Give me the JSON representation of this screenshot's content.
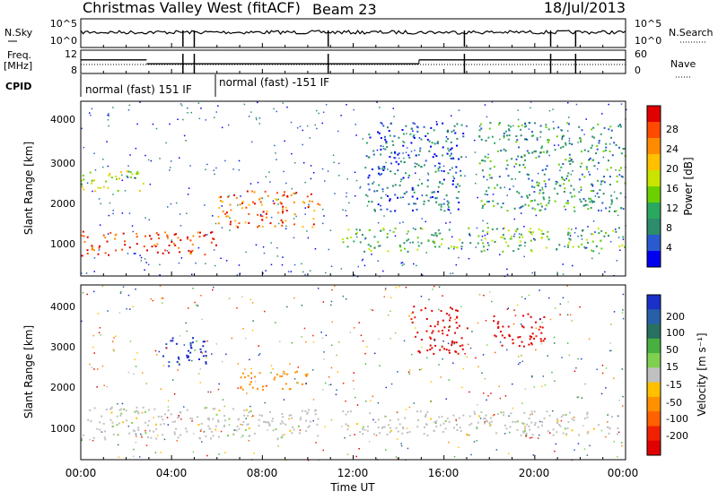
{
  "header": {
    "site": "Christmas Valley West (fitACF)",
    "beam": "Beam 23",
    "date": "18/Jul/2013"
  },
  "nsky_panel": {
    "left_label": "N.Sky",
    "left_ticks": [
      "10^5",
      "10^0"
    ],
    "right_ticks": [
      "10^5",
      "10^0"
    ],
    "right_label": "N.Search"
  },
  "freq_panel": {
    "left_label_1": "Freq.",
    "left_label_2": "[MHz]",
    "left_ticks": [
      "12",
      "8"
    ],
    "right_ticks": [
      "60",
      "0"
    ],
    "right_label": "Nave"
  },
  "cpid": {
    "label": "CPID",
    "modes": [
      "normal (fast) 151 IF",
      "normal (fast) -151 IF"
    ]
  },
  "x_axis": {
    "title": "Time UT",
    "ticks": [
      "00:00",
      "04:00",
      "08:00",
      "12:00",
      "16:00",
      "20:00",
      "00:00"
    ]
  },
  "power_panel": {
    "ylabel": "Slant Range [km]",
    "yticks": [
      "4000",
      "3000",
      "2000",
      "1000"
    ],
    "colorbar_title": "Power [dB]",
    "colorbar_ticks": [
      "28",
      "24",
      "20",
      "16",
      "12",
      "8",
      "4"
    ],
    "colors": [
      "#e00000",
      "#ff4a00",
      "#ff8c00",
      "#ffc000",
      "#c8e400",
      "#6cd000",
      "#2aa860",
      "#2c8c6c",
      "#2a5ad0",
      "#0000f0"
    ]
  },
  "velocity_panel": {
    "ylabel": "Slant Range [km]",
    "yticks": [
      "4000",
      "3000",
      "2000",
      "1000"
    ],
    "colorbar_title": "Velocity [m s⁻¹]",
    "colorbar_ticks": [
      "200",
      "100",
      "50",
      "15",
      "-15",
      "-50",
      "-100",
      "-200"
    ],
    "colors": [
      "#1a30c8",
      "#2860a8",
      "#287060",
      "#48b040",
      "#80d050",
      "#c0c0c0",
      "#ffc000",
      "#ff9000",
      "#ff6000",
      "#f02000",
      "#e00000"
    ]
  },
  "chart_data": {
    "type": "heatmap",
    "title": "Christmas Valley West (fitACF)",
    "xlabel": "Time UT",
    "ylabel": "Slant Range [km]",
    "x_range_hours": [
      0,
      24
    ],
    "y_range_km": [
      180,
      4500
    ],
    "beam": 23,
    "date": "18/Jul/2013",
    "cpid_segments": [
      {
        "label": "normal (fast) 151 IF",
        "start_h": 0,
        "end_h": 6.0
      },
      {
        "label": "normal (fast) -151 IF",
        "start_h": 6.0,
        "end_h": 24
      }
    ],
    "frequency_mhz_segments": [
      {
        "start_h": 0,
        "end_h": 2.9,
        "value": 10.5
      },
      {
        "start_h": 2.9,
        "end_h": 14.9,
        "value": 9.5
      },
      {
        "start_h": 14.9,
        "end_h": 24,
        "value": 10.5
      }
    ],
    "data_gaps_h": [
      4.5,
      5.0,
      10.9,
      16.9,
      20.7,
      21.8
    ],
    "power_scatter_bands": [
      {
        "t0": 0.0,
        "t1": 6.0,
        "r0": 700,
        "r1": 1300,
        "level_db": 28
      },
      {
        "t0": 6.0,
        "t1": 10.5,
        "r0": 1400,
        "r1": 2300,
        "level_db": 24
      },
      {
        "t0": 0.0,
        "t1": 3.0,
        "r0": 2300,
        "r1": 2800,
        "level_db": 16
      },
      {
        "t0": 11.5,
        "t1": 24.0,
        "r0": 800,
        "r1": 1400,
        "level_db": 12
      },
      {
        "t0": 12.5,
        "t1": 17.0,
        "r0": 1800,
        "r1": 4000,
        "level_db": 8
      },
      {
        "t0": 17.5,
        "t1": 24.0,
        "r0": 1800,
        "r1": 4000,
        "level_db": 10
      }
    ],
    "velocity_scatter_bands": [
      {
        "t0": 0.0,
        "t1": 10.5,
        "r0": 700,
        "r1": 1500,
        "velocity": 0
      },
      {
        "t0": 3.5,
        "t1": 5.5,
        "r0": 2500,
        "r1": 3300,
        "velocity": 200
      },
      {
        "t0": 7.0,
        "t1": 10.0,
        "r0": 1900,
        "r1": 2400,
        "velocity": -100
      },
      {
        "t0": 14.5,
        "t1": 17.0,
        "r0": 2800,
        "r1": 4000,
        "velocity": -200
      },
      {
        "t0": 18.0,
        "t1": 20.5,
        "r0": 3000,
        "r1": 3800,
        "velocity": -200
      },
      {
        "t0": 11.5,
        "t1": 24.0,
        "r0": 800,
        "r1": 1400,
        "velocity": 0
      }
    ]
  }
}
